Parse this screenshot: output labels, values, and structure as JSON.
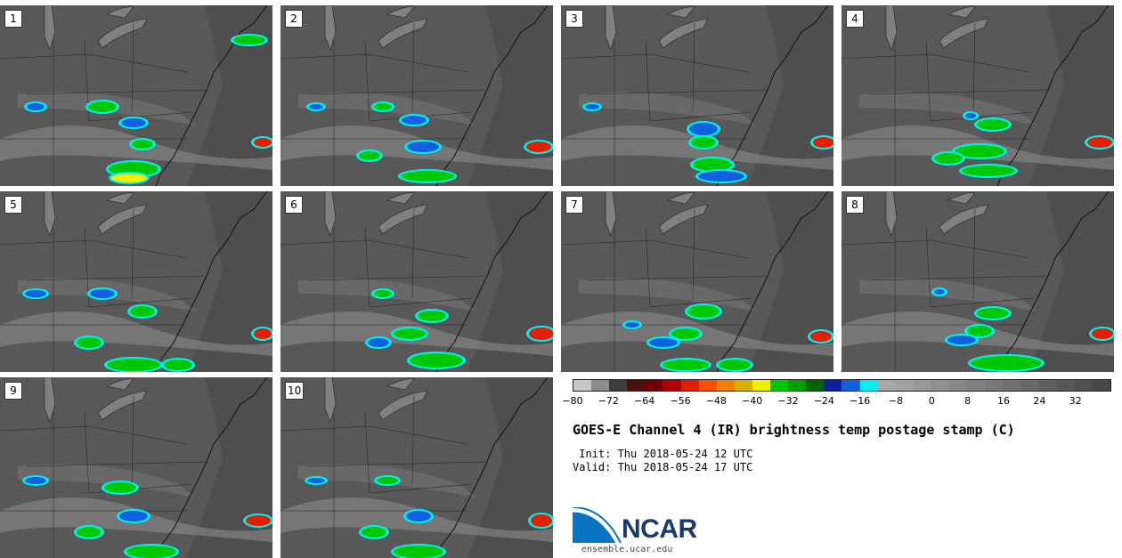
{
  "panels": [
    {
      "label": "1"
    },
    {
      "label": "2"
    },
    {
      "label": "3"
    },
    {
      "label": "4"
    },
    {
      "label": "5"
    },
    {
      "label": "6"
    },
    {
      "label": "7"
    },
    {
      "label": "8"
    },
    {
      "label": "9"
    },
    {
      "label": "10"
    }
  ],
  "colorbar": {
    "colors": [
      "#c8c8c8",
      "#8c8c8c",
      "#3c3c3c",
      "#4a1010",
      "#700000",
      "#b00000",
      "#e02000",
      "#ff5000",
      "#f08000",
      "#d8b000",
      "#f0f000",
      "#00c800",
      "#00a000",
      "#006400",
      "#1020a0",
      "#1060e0",
      "#00f0f0",
      "#a8a8a8",
      "#a0a0a0",
      "#989898",
      "#909090",
      "#888888",
      "#808080",
      "#787878",
      "#707070",
      "#686868",
      "#606060",
      "#585858",
      "#505050",
      "#484848"
    ],
    "tick_labels": [
      "−80",
      "−72",
      "−64",
      "−56",
      "−48",
      "−40",
      "−32",
      "−24",
      "−16",
      "−8",
      "0",
      "8",
      "16",
      "24",
      "32"
    ]
  },
  "title": "GOES-E Channel 4 (IR) brightness temp postage stamp (C)",
  "init": " Init: Thu 2018-05-24 12 UTC",
  "valid": "Valid: Thu 2018-05-24 17 UTC",
  "logo_text": "NCAR",
  "site": "ensemble.ucar.edu"
}
